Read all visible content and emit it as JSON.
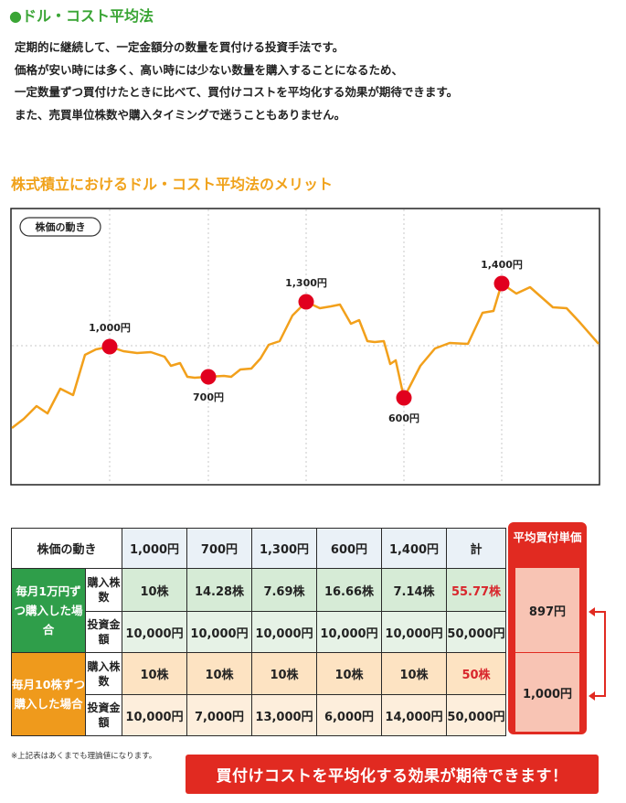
{
  "title": "●ドル・コスト平均法",
  "intro_lines": [
    "定期的に継続して、一定金額分の数量を買付ける投資手法です。",
    "価格が安い時には多く、高い時には少ない数量を購入することになるため、",
    "一定数量ずつ買付けたときに比べて、買付けコストを平均化する効果が期待できます。",
    "また、売買単位株数や購入タイミングで迷うこともありません。"
  ],
  "subtitle": "株式積立におけるドル・コスト平均法のメリット",
  "chart_data": {
    "type": "line",
    "title": "株価の動き",
    "points": [
      {
        "label": "1,000円",
        "value": 1000
      },
      {
        "label": "700円",
        "value": 700
      },
      {
        "label": "1,300円",
        "value": 1300
      },
      {
        "label": "600円",
        "value": 600
      },
      {
        "label": "1,400円",
        "value": 1400
      }
    ],
    "line_color": "#f2a01b",
    "marker_color": "#e1001e",
    "grid": true
  },
  "table": {
    "header": [
      "株価の動き",
      "1,000円",
      "700円",
      "1,300円",
      "600円",
      "1,400円",
      "計"
    ],
    "groups": [
      {
        "label": "毎月1万円ずつ購入した場合",
        "rows": [
          {
            "sub": "購入株数",
            "values": [
              "10株",
              "14.28株",
              "7.69株",
              "16.66株",
              "7.14株"
            ],
            "total": "55.77株",
            "total_red": true
          },
          {
            "sub": "投資金額",
            "values": [
              "10,000円",
              "10,000円",
              "10,000円",
              "10,000円",
              "10,000円"
            ],
            "total": "50,000円",
            "total_red": false
          }
        ]
      },
      {
        "label": "毎月10株ずつ購入した場合",
        "rows": [
          {
            "sub": "購入株数",
            "values": [
              "10株",
              "10株",
              "10株",
              "10株",
              "10株"
            ],
            "total": "50株",
            "total_red": true
          },
          {
            "sub": "投資金額",
            "values": [
              "10,000円",
              "7,000円",
              "13,000円",
              "6,000円",
              "14,000円"
            ],
            "total": "50,000円",
            "total_red": false
          }
        ]
      }
    ]
  },
  "average": {
    "title": "平均買付単価",
    "values": [
      "897円",
      "1,000円"
    ]
  },
  "note": "※上記表はあくまでも理論値になります。",
  "banner": "買付けコストを平均化する効果が期待できます！",
  "colors": {
    "green": "#3aa535",
    "orange": "#f0a21b",
    "red": "#e12a21"
  }
}
